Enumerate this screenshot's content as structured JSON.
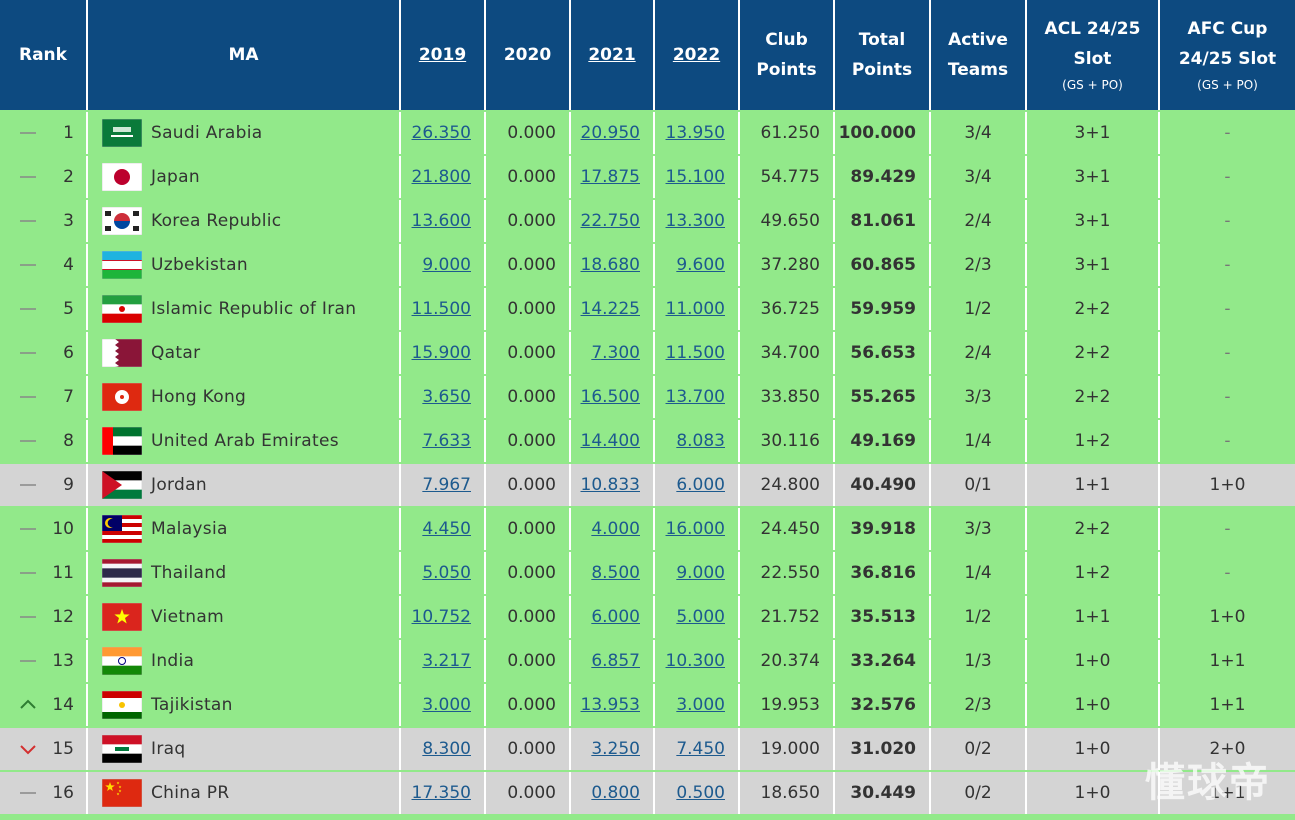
{
  "table": {
    "columns": [
      {
        "label": "Rank"
      },
      {
        "label": "MA"
      },
      {
        "label": "2019"
      },
      {
        "label": "2020"
      },
      {
        "label": "2021"
      },
      {
        "label": "2022"
      },
      {
        "label": "Club Points"
      },
      {
        "label": "Total Points"
      },
      {
        "label": "Active Teams"
      },
      {
        "label": "ACL 24/25 Slot",
        "note": "(GS + PO)"
      },
      {
        "label": "AFC Cup 24/25 Slot",
        "note": "(GS + PO)"
      }
    ],
    "rows": [
      [
        1,
        "Saudi Arabia",
        "26.350",
        "0.000",
        "20.950",
        "13.950",
        "61.250",
        "100.000",
        "3/4",
        "3+1",
        "-"
      ],
      [
        2,
        "Japan",
        "21.800",
        "0.000",
        "17.875",
        "15.100",
        "54.775",
        "89.429",
        "3/4",
        "3+1",
        "-"
      ],
      [
        3,
        "Korea Republic",
        "13.600",
        "0.000",
        "22.750",
        "13.300",
        "49.650",
        "81.061",
        "2/4",
        "3+1",
        "-"
      ],
      [
        4,
        "Uzbekistan",
        "9.000",
        "0.000",
        "18.680",
        "9.600",
        "37.280",
        "60.865",
        "2/3",
        "3+1",
        "-"
      ],
      [
        5,
        "Islamic Republic of Iran",
        "11.500",
        "0.000",
        "14.225",
        "11.000",
        "36.725",
        "59.959",
        "1/2",
        "2+2",
        "-"
      ],
      [
        6,
        "Qatar",
        "15.900",
        "0.000",
        "7.300",
        "11.500",
        "34.700",
        "56.653",
        "2/4",
        "2+2",
        "-"
      ],
      [
        7,
        "Hong Kong",
        "3.650",
        "0.000",
        "16.500",
        "13.700",
        "33.850",
        "55.265",
        "3/3",
        "2+2",
        "-"
      ],
      [
        8,
        "United Arab Emirates",
        "7.633",
        "0.000",
        "14.400",
        "8.083",
        "30.116",
        "49.169",
        "1/4",
        "1+2",
        "-"
      ],
      [
        9,
        "Jordan",
        "7.967",
        "0.000",
        "10.833",
        "6.000",
        "24.800",
        "40.490",
        "0/1",
        "1+1",
        "1+0"
      ],
      [
        10,
        "Malaysia",
        "4.450",
        "0.000",
        "4.000",
        "16.000",
        "24.450",
        "39.918",
        "3/3",
        "2+2",
        "-"
      ],
      [
        11,
        "Thailand",
        "5.050",
        "0.000",
        "8.500",
        "9.000",
        "22.550",
        "36.816",
        "1/4",
        "1+2",
        "-"
      ],
      [
        12,
        "Vietnam",
        "10.752",
        "0.000",
        "6.000",
        "5.000",
        "21.752",
        "35.513",
        "1/2",
        "1+1",
        "1+0"
      ],
      [
        13,
        "India",
        "3.217",
        "0.000",
        "6.857",
        "10.300",
        "20.374",
        "33.264",
        "1/3",
        "1+0",
        "1+1"
      ],
      [
        14,
        "Tajikistan",
        "3.000",
        "0.000",
        "13.953",
        "3.000",
        "19.953",
        "32.576",
        "2/3",
        "1+0",
        "1+1"
      ],
      [
        15,
        "Iraq",
        "8.300",
        "0.000",
        "3.250",
        "7.450",
        "19.000",
        "31.020",
        "0/2",
        "1+0",
        "2+0"
      ],
      [
        16,
        "China PR",
        "17.350",
        "0.000",
        "0.800",
        "0.500",
        "18.650",
        "30.449",
        "0/2",
        "1+0",
        "1+1"
      ]
    ]
  },
  "watermark": "懂球帝"
}
